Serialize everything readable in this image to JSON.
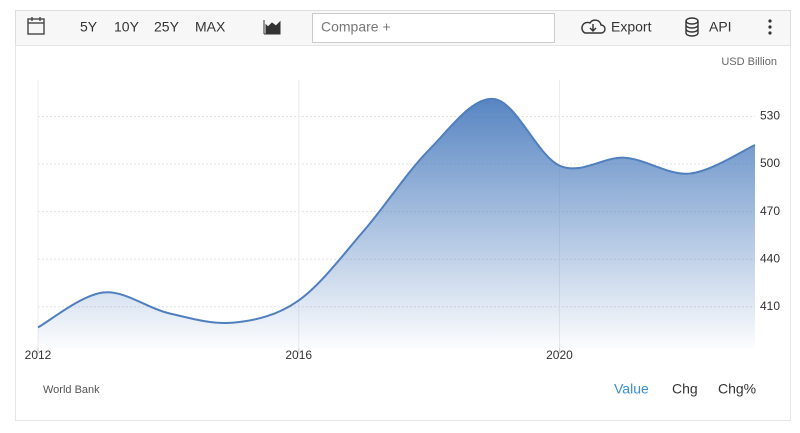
{
  "toolbar": {
    "ranges": [
      "5Y",
      "10Y",
      "25Y",
      "MAX"
    ],
    "compare": "Compare +",
    "export": "Export",
    "api": "API"
  },
  "chart_data": {
    "type": "area",
    "unit_label": "USD Billion",
    "source": "World Bank",
    "x": [
      2012,
      2013,
      2014,
      2015,
      2016,
      2017,
      2018,
      2019,
      2020,
      2021,
      2022,
      2023
    ],
    "series": [
      {
        "color": "#4f7fbf",
        "values": [
          397,
          419,
          406,
          400,
          414,
          458,
          509,
          541,
          499,
          504,
          494,
          512
        ]
      }
    ],
    "xlim": [
      2012,
      2023
    ],
    "ylim": [
      384,
      553
    ],
    "xticks": [
      2012,
      2016,
      2020
    ],
    "yticks": [
      410,
      440,
      470,
      500,
      530
    ],
    "grid": true
  },
  "footer": {
    "tabs": [
      "Value",
      "Chg",
      "Chg%"
    ]
  }
}
